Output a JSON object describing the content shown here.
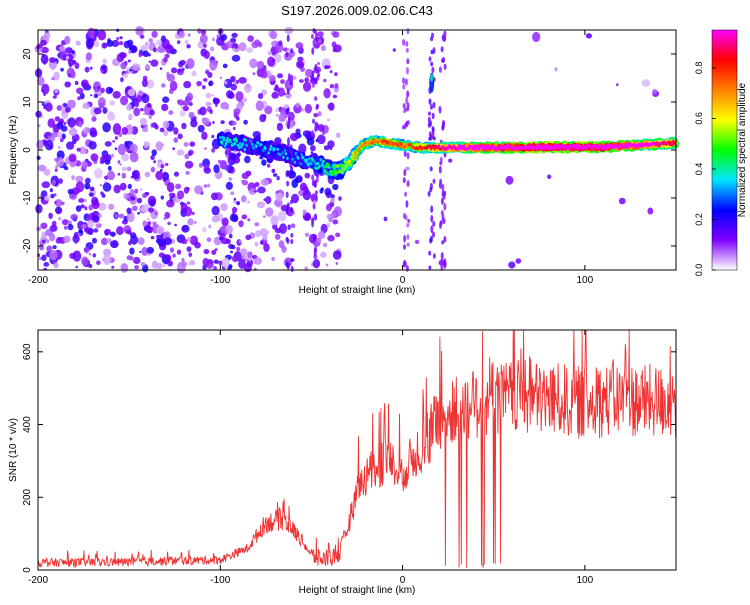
{
  "figure": {
    "title": "S197.2026.009.02.06.C43"
  },
  "chart_data": [
    {
      "type": "heatmap",
      "title": "S197.2026.009.02.06.C43",
      "xlabel": "Height of straight line (km)",
      "ylabel": "Frequency (Hz)",
      "xlim": [
        -200,
        150
      ],
      "ylim": [
        -25,
        25
      ],
      "xticks": [
        -200,
        -100,
        0,
        100
      ],
      "xtick_labels": [
        "-200",
        "-100",
        "0",
        "100"
      ],
      "yticks": [
        -20,
        -10,
        0,
        10,
        20
      ],
      "ytick_labels": [
        "-20",
        "-10",
        "0",
        "10",
        "20"
      ],
      "ridge": {
        "x": [
          -100,
          -85,
          -70,
          -55,
          -45,
          -38,
          -33,
          -28,
          -22,
          -15,
          -8,
          0,
          10,
          25,
          50,
          80,
          110,
          130,
          150
        ],
        "y": [
          2,
          1,
          0,
          -2,
          -3,
          -4.5,
          -4,
          -2,
          1,
          2,
          1.5,
          1,
          0.5,
          0.5,
          0.5,
          0.6,
          0.6,
          1,
          1.5
        ],
        "amplitude": [
          0.25,
          0.2,
          0.2,
          0.2,
          0.25,
          0.3,
          0.35,
          0.4,
          0.5,
          0.5,
          0.55,
          0.5,
          0.55,
          0.65,
          0.75,
          0.85,
          0.8,
          0.7,
          0.6
        ]
      },
      "colorbar": {
        "label": "Normalized spectral amplitude",
        "range": [
          0,
          0.95
        ],
        "ticks": [
          0.0,
          0.2,
          0.4,
          0.6,
          0.8
        ],
        "tick_labels": [
          "0.0",
          "0.2",
          "0.4",
          "0.6",
          "0.8"
        ],
        "colors": [
          "#ffffff",
          "#7f00ff",
          "#0000ff",
          "#00e5ff",
          "#00ff00",
          "#ffff00",
          "#ff8000",
          "#ff0000",
          "#ff00ff"
        ]
      }
    },
    {
      "type": "line",
      "xlabel": "Height of straight line (km)",
      "ylabel": "SNR (10 * v/v)",
      "xlim": [
        -200,
        150
      ],
      "ylim": [
        0,
        660
      ],
      "xticks": [
        -200,
        -100,
        0,
        100
      ],
      "xtick_labels": [
        "-200",
        "-100",
        "0",
        "100"
      ],
      "yticks": [
        0,
        200,
        400,
        600
      ],
      "ytick_labels": [
        "0",
        "200",
        "400",
        "600"
      ],
      "color": "#ee3333",
      "envelope": {
        "x": [
          -200,
          -150,
          -100,
          -85,
          -75,
          -65,
          -55,
          -50,
          -45,
          -35,
          -28,
          -25,
          -20,
          -10,
          0,
          10,
          20,
          30,
          40,
          50,
          60,
          80,
          100,
          120,
          150
        ],
        "y": [
          20,
          22,
          28,
          60,
          130,
          140,
          80,
          40,
          30,
          40,
          150,
          220,
          260,
          300,
          270,
          340,
          410,
          440,
          460,
          470,
          475,
          470,
          460,
          470,
          460
        ]
      }
    }
  ]
}
